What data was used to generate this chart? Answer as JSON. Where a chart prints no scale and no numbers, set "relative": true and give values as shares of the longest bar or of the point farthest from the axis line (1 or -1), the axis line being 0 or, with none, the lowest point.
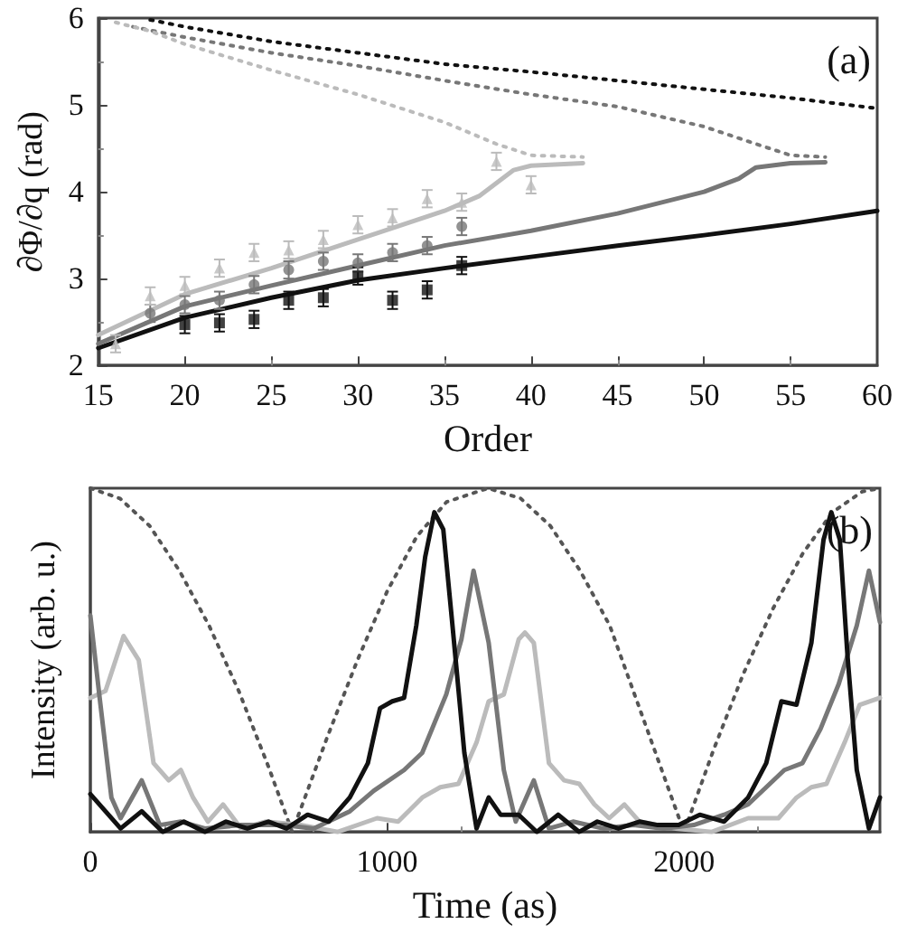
{
  "chart_data": [
    {
      "type": "line",
      "xlabel": "Order",
      "ylabel": "∂Φ/∂q (rad)",
      "annotations": [
        "(a)"
      ],
      "xlim": [
        15,
        60
      ],
      "xticks": [
        15,
        20,
        25,
        30,
        35,
        40,
        45,
        50,
        55,
        60
      ],
      "ylim": [
        2,
        6
      ],
      "yticks": [
        2,
        3,
        4,
        5,
        6
      ],
      "grid": false,
      "series": [
        {
          "type": "line",
          "color": "#111111",
          "line_style": "solid",
          "marker": "none",
          "x": [
            15,
            20,
            25,
            30,
            35,
            40,
            45,
            50,
            55,
            60
          ],
          "values": [
            2.2,
            2.55,
            2.78,
            2.98,
            3.12,
            3.25,
            3.38,
            3.5,
            3.63,
            3.78
          ]
        },
        {
          "type": "line",
          "color": "#777777",
          "line_style": "solid",
          "marker": "none",
          "x": [
            15,
            20,
            25,
            30,
            35,
            40,
            45,
            50,
            52,
            53,
            55,
            57
          ],
          "values": [
            2.25,
            2.68,
            2.92,
            3.15,
            3.38,
            3.55,
            3.75,
            4.0,
            4.15,
            4.28,
            4.33,
            4.34
          ]
        },
        {
          "type": "line",
          "color": "#bbbbbb",
          "line_style": "solid",
          "marker": "none",
          "x": [
            15,
            20,
            25,
            30,
            35,
            37,
            38,
            39,
            40,
            43
          ],
          "values": [
            2.35,
            2.82,
            3.12,
            3.45,
            3.78,
            3.95,
            4.1,
            4.25,
            4.3,
            4.33
          ]
        },
        {
          "type": "line",
          "color": "#111111",
          "line_style": "dotted",
          "marker": "none",
          "x": [
            18,
            20,
            25,
            30,
            35,
            40,
            45,
            50,
            55,
            60
          ],
          "values": [
            5.98,
            5.9,
            5.73,
            5.6,
            5.47,
            5.38,
            5.28,
            5.18,
            5.08,
            4.96
          ]
        },
        {
          "type": "line",
          "color": "#777777",
          "line_style": "dotted",
          "marker": "none",
          "x": [
            17,
            20,
            25,
            30,
            35,
            40,
            45,
            50,
            53,
            55,
            57
          ],
          "values": [
            5.9,
            5.78,
            5.6,
            5.45,
            5.28,
            5.12,
            4.98,
            4.75,
            4.55,
            4.42,
            4.4
          ]
        },
        {
          "type": "line",
          "color": "#bbbbbb",
          "line_style": "dotted",
          "marker": "none",
          "x": [
            16,
            18,
            20,
            25,
            30,
            35,
            38,
            40,
            43
          ],
          "values": [
            5.95,
            5.85,
            5.7,
            5.4,
            5.12,
            4.8,
            4.55,
            4.42,
            4.4
          ]
        },
        {
          "type": "scatter",
          "color": "#111111",
          "marker": "square",
          "x": [
            20,
            22,
            24,
            26,
            28,
            30,
            32,
            34,
            36
          ],
          "values": [
            2.47,
            2.49,
            2.53,
            2.75,
            2.78,
            3.03,
            2.75,
            2.87,
            3.15
          ],
          "errors": [
            0.1,
            0.1,
            0.1,
            0.1,
            0.1,
            0.1,
            0.1,
            0.1,
            0.1
          ]
        },
        {
          "type": "scatter",
          "color": "#777777",
          "marker": "circle",
          "x": [
            18,
            20,
            22,
            24,
            26,
            28,
            30,
            32,
            34,
            36
          ],
          "values": [
            2.6,
            2.7,
            2.75,
            2.93,
            3.1,
            3.2,
            3.18,
            3.3,
            3.38,
            3.6
          ],
          "errors": [
            0.1,
            0.1,
            0.1,
            0.1,
            0.1,
            0.1,
            0.1,
            0.1,
            0.1,
            0.1
          ]
        },
        {
          "type": "scatter",
          "color": "#bbbbbb",
          "marker": "triangle",
          "x": [
            16,
            18,
            20,
            22,
            24,
            26,
            28,
            30,
            32,
            34,
            36,
            38,
            40
          ],
          "values": [
            2.25,
            2.8,
            2.92,
            3.12,
            3.3,
            3.33,
            3.45,
            3.62,
            3.7,
            3.92,
            3.88,
            4.35,
            4.08
          ],
          "errors": [
            0.1,
            0.1,
            0.1,
            0.1,
            0.1,
            0.1,
            0.1,
            0.1,
            0.1,
            0.1,
            0.1,
            0.1,
            0.1
          ]
        }
      ]
    },
    {
      "type": "line",
      "relative": true,
      "xlabel": "Time (as)",
      "ylabel": "Intensity (arb. u.)",
      "annotations": [
        "(b)"
      ],
      "xlim": [
        0,
        2660
      ],
      "xticks": [
        0,
        1000,
        2000
      ],
      "grid": false,
      "series": [
        {
          "color": "#555555",
          "line_style": "dotted",
          "marker": "none",
          "x": [
            0,
            100,
            200,
            300,
            400,
            500,
            600,
            680,
            800,
            900,
            1000,
            1100,
            1200,
            1340,
            1450,
            1550,
            1650,
            1750,
            1850,
            1950,
            2000,
            2100,
            2200,
            2300,
            2400,
            2500,
            2600,
            2660
          ],
          "values": [
            1,
            0.97,
            0.89,
            0.76,
            0.6,
            0.41,
            0.19,
            0,
            0.28,
            0.5,
            0.7,
            0.86,
            0.96,
            1,
            0.97,
            0.89,
            0.76,
            0.6,
            0.36,
            0.12,
            0,
            0.24,
            0.46,
            0.65,
            0.81,
            0.93,
            0.99,
            1
          ]
        },
        {
          "color": "#bbbbbb",
          "line_style": "solid",
          "marker": "none",
          "x": [
            0,
            51,
            112,
            163,
            213,
            264,
            305,
            346,
            396,
            447,
            508,
            590,
            712,
            834,
            966,
            1037,
            1118,
            1179,
            1240,
            1301,
            1342,
            1393,
            1443,
            1464,
            1494,
            1545,
            1596,
            1647,
            1698,
            1748,
            1799,
            1850,
            1972,
            2094,
            2216,
            2318,
            2379,
            2429,
            2480,
            2541,
            2592,
            2660
          ],
          "values": [
            0.39,
            0.41,
            0.57,
            0.5,
            0.2,
            0.15,
            0.18,
            0.1,
            0.03,
            0.08,
            0.01,
            0.03,
            0.02,
            0,
            0.04,
            0.03,
            0.1,
            0.13,
            0.14,
            0.26,
            0.38,
            0.4,
            0.56,
            0.58,
            0.55,
            0.2,
            0.15,
            0.14,
            0.08,
            0.04,
            0.08,
            0.03,
            0.01,
            0,
            0.04,
            0.04,
            0.1,
            0.13,
            0.14,
            0.26,
            0.37,
            0.39
          ]
        },
        {
          "color": "#777777",
          "line_style": "solid",
          "marker": "none",
          "x": [
            0,
            30,
            71,
            102,
            173,
            234,
            305,
            386,
            508,
            651,
            752,
            874,
            955,
            1057,
            1118,
            1199,
            1250,
            1291,
            1342,
            1393,
            1433,
            1494,
            1545,
            1626,
            1728,
            1830,
            1931,
            2033,
            2135,
            2216,
            2277,
            2338,
            2399,
            2460,
            2521,
            2582,
            2623,
            2660
          ],
          "values": [
            0.63,
            0.4,
            0.1,
            0.04,
            0.15,
            0.02,
            0.03,
            0.01,
            0.02,
            0.02,
            0.01,
            0.06,
            0.12,
            0.18,
            0.23,
            0.4,
            0.56,
            0.76,
            0.55,
            0.18,
            0.03,
            0.15,
            0.01,
            0.03,
            0.01,
            0.02,
            0.01,
            0.02,
            0.05,
            0.08,
            0.13,
            0.18,
            0.2,
            0.3,
            0.43,
            0.6,
            0.76,
            0.61
          ]
        },
        {
          "color": "#111111",
          "line_style": "solid",
          "marker": "none",
          "x": [
            0,
            102,
            173,
            244,
            315,
            386,
            457,
            529,
            600,
            661,
            732,
            803,
            874,
            935,
            976,
            1017,
            1057,
            1098,
            1128,
            1159,
            1189,
            1220,
            1260,
            1301,
            1342,
            1382,
            1443,
            1504,
            1576,
            1647,
            1708,
            1779,
            1850,
            1911,
            1982,
            2053,
            2135,
            2216,
            2277,
            2328,
            2379,
            2429,
            2470,
            2496,
            2525,
            2551,
            2582,
            2623,
            2660
          ],
          "values": [
            0.11,
            0.01,
            0.06,
            0,
            0.03,
            0,
            0.03,
            0.01,
            0.03,
            0.01,
            0.05,
            0.03,
            0.1,
            0.2,
            0.36,
            0.38,
            0.39,
            0.6,
            0.8,
            0.93,
            0.88,
            0.6,
            0.23,
            0.01,
            0.1,
            0.05,
            0.05,
            0,
            0.05,
            0,
            0.03,
            0.01,
            0.03,
            0.02,
            0.02,
            0.05,
            0.03,
            0.1,
            0.2,
            0.38,
            0.37,
            0.55,
            0.85,
            0.93,
            0.85,
            0.51,
            0.18,
            0.01,
            0.1
          ]
        }
      ]
    }
  ]
}
